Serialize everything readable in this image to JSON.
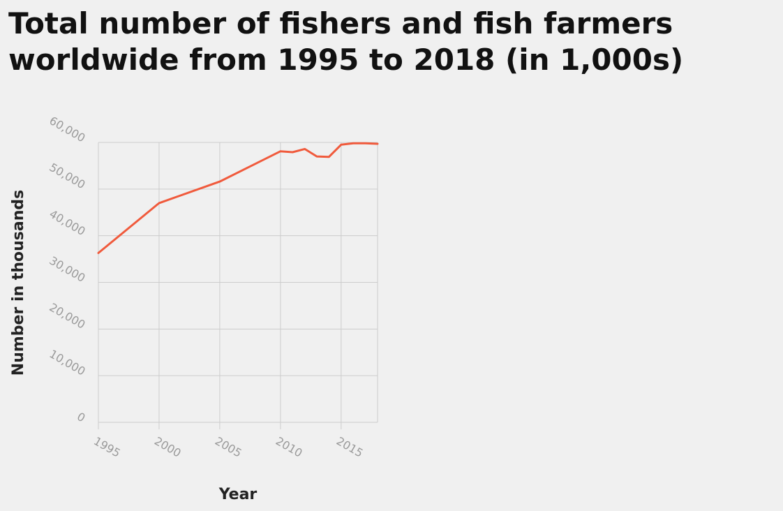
{
  "chart_data": {
    "type": "line",
    "title": "Total number of fishers and fish farmers worldwide from 1995 to 2018 (in 1,000s)",
    "xlabel": "Year",
    "ylabel": "Number in thousands",
    "xlim": [
      1995,
      2018
    ],
    "ylim": [
      0,
      60000
    ],
    "x_ticks": [
      1995,
      2000,
      2005,
      2010,
      2015
    ],
    "x_tick_labels": [
      "1995",
      "2000",
      "2005",
      "2010",
      "2015"
    ],
    "y_ticks": [
      0,
      10000,
      20000,
      30000,
      40000,
      50000,
      60000
    ],
    "y_tick_labels": [
      "0",
      "10,000",
      "20,000",
      "30,000",
      "40,000",
      "50,000",
      "60,000"
    ],
    "grid": true,
    "colors": {
      "line": "#f05a3c",
      "grid": "#cccccc"
    },
    "series": [
      {
        "x": [
          1995,
          2000,
          2005,
          2010,
          2011,
          2012,
          2013,
          2014,
          2015,
          2016,
          2017,
          2018
        ],
        "values": [
          36300,
          47000,
          51600,
          58100,
          57900,
          58600,
          57000,
          56900,
          59500,
          59800,
          59800,
          59700
        ]
      }
    ]
  }
}
